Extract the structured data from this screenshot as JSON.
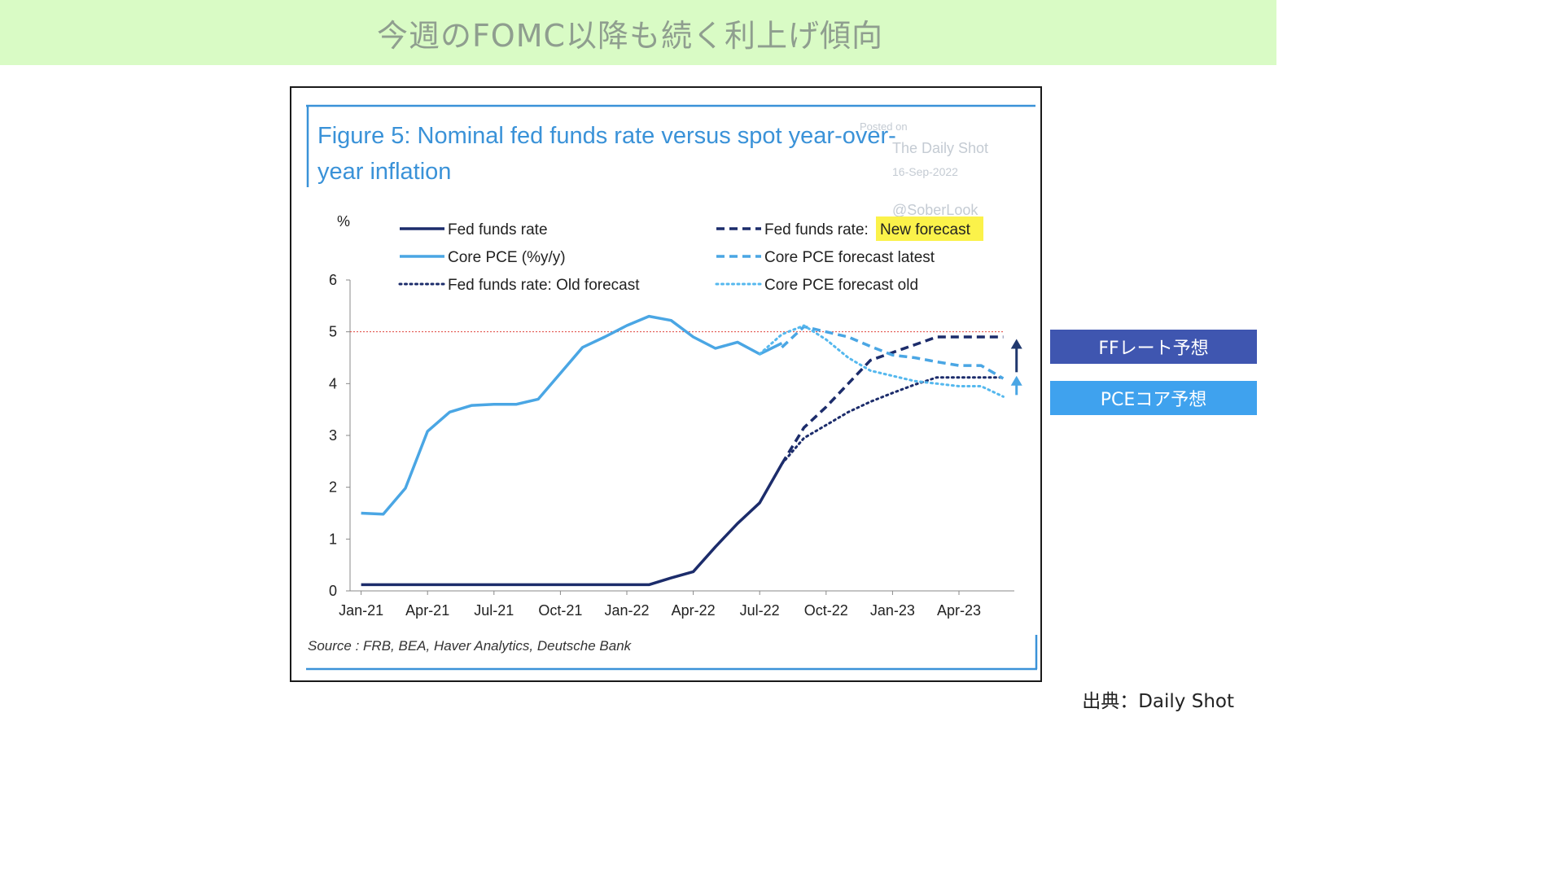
{
  "banner": {
    "title": "今週のFOMC以降も続く利上げ傾向"
  },
  "callouts": {
    "ff": "FFレート予想",
    "pce": "PCEコア予想"
  },
  "credit": "出典：Daily Shot",
  "watermark": {
    "posted": "Posted on",
    "site": "The Daily Shot",
    "date": "16-Sep-2022",
    "handle": "@SoberLook"
  },
  "colors": {
    "fed": "#1c2c6b",
    "core_pce": "#4aa6e4",
    "core_pce_old": "#55b8ee",
    "ref_line": "#e0443c",
    "title": "#3a92d8",
    "highlight": "#fbf24a",
    "arrow_ff": "#20386e",
    "arrow_pce": "#4aa6e4"
  },
  "chart_data": {
    "type": "line",
    "title": "Figure 5: Nominal fed funds rate versus spot year-over-year inflation",
    "title_lines": [
      "Figure 5: Nominal fed funds rate versus spot year-over-",
      "year inflation"
    ],
    "ylabel": "%",
    "ylim": [
      0,
      6
    ],
    "yticks": [
      "0",
      "1",
      "2",
      "3",
      "4",
      "5",
      "6"
    ],
    "xticks": [
      "Jan-21",
      "Apr-21",
      "Jul-21",
      "Oct-21",
      "Jan-22",
      "Apr-22",
      "Jul-22",
      "Oct-22",
      "Jan-23",
      "Apr-23"
    ],
    "xtick_months": [
      0,
      3,
      6,
      9,
      12,
      15,
      18,
      21,
      24,
      27
    ],
    "xlim_months": [
      -0.5,
      29.5
    ],
    "reference_line": {
      "y": 5.0
    },
    "source": "Source : FRB, BEA, Haver Analytics, Deutsche Bank",
    "legend": [
      {
        "key": "fed",
        "label": "Fed funds rate"
      },
      {
        "key": "core_pce",
        "label": "Core PCE (%y/y)"
      },
      {
        "key": "fed_old",
        "label": "Fed funds rate: Old forecast"
      },
      {
        "key": "fed_new",
        "label": "Fed funds rate: ",
        "highlight": "New forecast"
      },
      {
        "key": "pce_latest",
        "label": "Core PCE forecast latest"
      },
      {
        "key": "pce_old",
        "label": "Core PCE forecast old"
      }
    ],
    "series": [
      {
        "key": "fed",
        "name": "Fed funds rate",
        "style": "solid",
        "color": "#1c2c6b",
        "points": [
          [
            0,
            0.12
          ],
          [
            1,
            0.12
          ],
          [
            2,
            0.12
          ],
          [
            3,
            0.12
          ],
          [
            4,
            0.12
          ],
          [
            5,
            0.12
          ],
          [
            6,
            0.12
          ],
          [
            7,
            0.12
          ],
          [
            8,
            0.12
          ],
          [
            9,
            0.12
          ],
          [
            10,
            0.12
          ],
          [
            11,
            0.12
          ],
          [
            12,
            0.12
          ],
          [
            13,
            0.12
          ],
          [
            14,
            0.25
          ],
          [
            15,
            0.37
          ],
          [
            16,
            0.85
          ],
          [
            17,
            1.3
          ],
          [
            18,
            1.7
          ],
          [
            19,
            2.45
          ]
        ]
      },
      {
        "key": "core_pce",
        "name": "Core PCE (%y/y)",
        "style": "solid",
        "color": "#4aa6e4",
        "points": [
          [
            0,
            1.5
          ],
          [
            1,
            1.48
          ],
          [
            2,
            1.98
          ],
          [
            3,
            3.08
          ],
          [
            4,
            3.45
          ],
          [
            5,
            3.58
          ],
          [
            6,
            3.6
          ],
          [
            7,
            3.6
          ],
          [
            8,
            3.7
          ],
          [
            9,
            4.2
          ],
          [
            10,
            4.7
          ],
          [
            11,
            4.9
          ],
          [
            12,
            5.12
          ],
          [
            13,
            5.3
          ],
          [
            14,
            5.22
          ],
          [
            15,
            4.9
          ],
          [
            16,
            4.68
          ],
          [
            17,
            4.8
          ],
          [
            18,
            4.57
          ],
          [
            19,
            4.78
          ]
        ]
      },
      {
        "key": "fed_new",
        "name": "Fed funds rate: New forecast",
        "style": "dash",
        "color": "#1c2c6b",
        "points": [
          [
            19,
            2.45
          ],
          [
            20,
            3.15
          ],
          [
            21,
            3.55
          ],
          [
            22,
            4.0
          ],
          [
            23,
            4.45
          ],
          [
            24,
            4.6
          ],
          [
            25,
            4.75
          ],
          [
            26,
            4.9
          ],
          [
            27,
            4.9
          ],
          [
            28,
            4.9
          ],
          [
            29,
            4.9
          ]
        ]
      },
      {
        "key": "fed_old",
        "name": "Fed funds rate: Old forecast",
        "style": "dot",
        "color": "#1c2c6b",
        "points": [
          [
            19,
            2.45
          ],
          [
            20,
            2.95
          ],
          [
            21,
            3.2
          ],
          [
            22,
            3.45
          ],
          [
            23,
            3.65
          ],
          [
            24,
            3.82
          ],
          [
            25,
            3.98
          ],
          [
            26,
            4.12
          ],
          [
            27,
            4.12
          ],
          [
            28,
            4.12
          ],
          [
            29,
            4.12
          ]
        ]
      },
      {
        "key": "pce_latest",
        "name": "Core PCE forecast latest",
        "style": "dash",
        "color": "#4aa6e4",
        "points": [
          [
            19,
            4.7
          ],
          [
            20,
            5.1
          ],
          [
            21,
            5.0
          ],
          [
            22,
            4.9
          ],
          [
            23,
            4.72
          ],
          [
            24,
            4.55
          ],
          [
            25,
            4.5
          ],
          [
            26,
            4.42
          ],
          [
            27,
            4.35
          ],
          [
            28,
            4.35
          ],
          [
            29,
            4.1
          ]
        ]
      },
      {
        "key": "pce_old",
        "name": "Core PCE forecast old",
        "style": "dot",
        "color": "#55b8ee",
        "points": [
          [
            18,
            4.57
          ],
          [
            19,
            4.95
          ],
          [
            20,
            5.12
          ],
          [
            21,
            4.85
          ],
          [
            22,
            4.5
          ],
          [
            23,
            4.25
          ],
          [
            24,
            4.15
          ],
          [
            25,
            4.05
          ],
          [
            26,
            4.0
          ],
          [
            27,
            3.95
          ],
          [
            28,
            3.95
          ],
          [
            29,
            3.75
          ]
        ]
      }
    ]
  }
}
